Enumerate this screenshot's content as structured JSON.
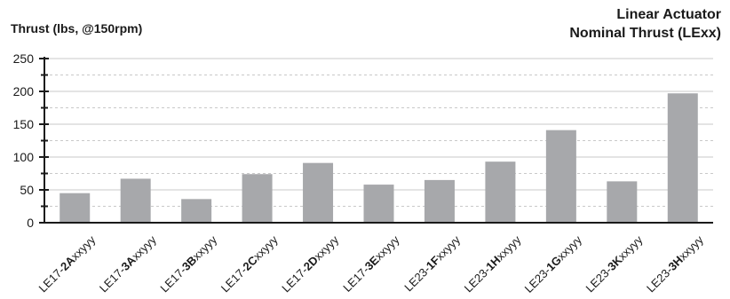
{
  "chart_data": {
    "type": "bar",
    "title": [
      "Linear Actuator",
      "Nominal Thrust (LExx)"
    ],
    "ylabel": "Thrust (lbs, @150rpm)",
    "xlabel": "",
    "ylim": [
      0,
      250
    ],
    "yticks": [
      0,
      50,
      100,
      150,
      200,
      250
    ],
    "grid": true,
    "legend": "none",
    "categories": [
      {
        "prefix": "LE17-",
        "bold": "2A",
        "suffix": "xxyyy"
      },
      {
        "prefix": "LE17-",
        "bold": "3A",
        "suffix": "xxyyy"
      },
      {
        "prefix": "LE17-",
        "bold": "3B",
        "suffix": "xxyyy"
      },
      {
        "prefix": "LE17-",
        "bold": "2C",
        "suffix": "xxyyy"
      },
      {
        "prefix": "LE17-",
        "bold": "2D",
        "suffix": "xxyyy"
      },
      {
        "prefix": "LE17-",
        "bold": "3E",
        "suffix": "xxyyy"
      },
      {
        "prefix": "LE23-",
        "bold": "1F",
        "suffix": "xxyyy"
      },
      {
        "prefix": "LE23-",
        "bold": "1H",
        "suffix": "xxyyy"
      },
      {
        "prefix": "LE23-",
        "bold": "1G",
        "suffix": "xxyyy"
      },
      {
        "prefix": "LE23-",
        "bold": "3K",
        "suffix": "xxyyy"
      },
      {
        "prefix": "LE23-",
        "bold": "3H",
        "suffix": "xxyyy"
      }
    ],
    "values": [
      45,
      67,
      36,
      74,
      91,
      58,
      65,
      93,
      141,
      63,
      197
    ],
    "colors": {
      "bar": "#a7a8ab",
      "axis": "#1a1a1a",
      "grid": "#c9c9c9"
    }
  }
}
